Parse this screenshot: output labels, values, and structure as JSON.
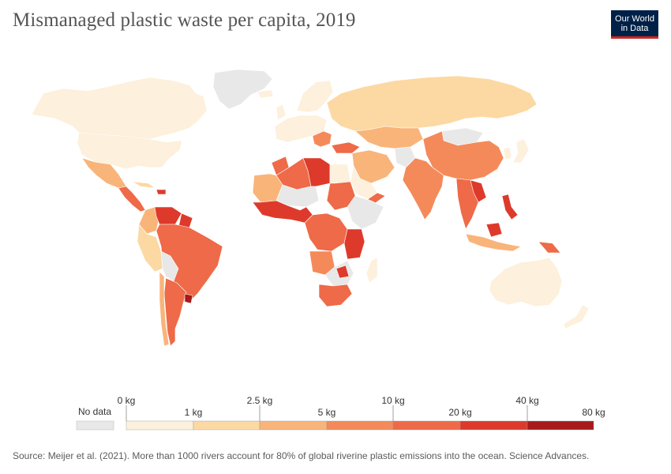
{
  "title": "Mismanaged plastic waste per capita, 2019",
  "logo": {
    "line1": "Our World",
    "line2": "in Data"
  },
  "legend": {
    "no_data_label": "No data",
    "no_data_color": "#e8e8e8",
    "upper_ticks": [
      "0 kg",
      "2.5 kg",
      "10 kg",
      "40 kg"
    ],
    "lower_ticks": [
      "1 kg",
      "5 kg",
      "20 kg",
      "80 kg"
    ],
    "bins": [
      {
        "from": "0 kg",
        "to": "1 kg",
        "color": "#fdf0dc"
      },
      {
        "from": "1 kg",
        "to": "2.5 kg",
        "color": "#fcd9a3"
      },
      {
        "from": "2.5 kg",
        "to": "5 kg",
        "color": "#f9b47a"
      },
      {
        "from": "5 kg",
        "to": "10 kg",
        "color": "#f48a5a"
      },
      {
        "from": "10 kg",
        "to": "20 kg",
        "color": "#ee6a48"
      },
      {
        "from": "20 kg",
        "to": "40 kg",
        "color": "#dd3a2c"
      },
      {
        "from": "40 kg",
        "to": "80 kg",
        "color": "#a81a1a"
      }
    ]
  },
  "source": "Source: Meijer et al. (2021). More than 1000 rivers account for 80% of global riverine plastic emissions into the ocean. Science Advances."
}
